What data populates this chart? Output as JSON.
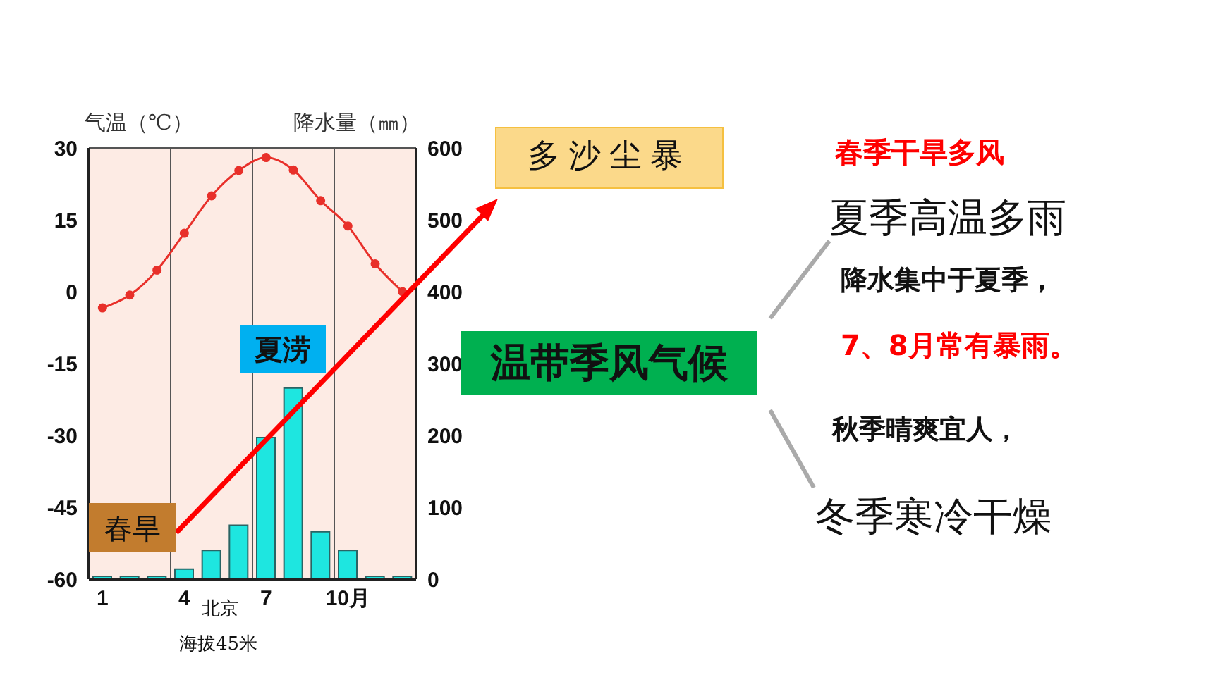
{
  "chart_data": {
    "type": "bar",
    "ylabel": "气温（℃）",
    "y2label": "降水量（㎜）",
    "categories": [
      "1",
      null,
      null,
      "4",
      null,
      null,
      "7",
      null,
      null,
      "10月",
      null,
      null
    ],
    "series": [
      {
        "axis": "y2",
        "color": "#1ee6e0",
        "values": [
          4,
          4,
          4,
          14,
          40,
          75,
          197,
          266,
          66,
          40,
          4,
          4
        ]
      },
      {
        "type": "line",
        "axis": "y",
        "color": "#e8302a",
        "marker": "circle",
        "values": [
          -3.4,
          -0.7,
          4.5,
          12.2,
          20,
          25.3,
          28,
          25.4,
          19,
          13.7,
          5.8,
          0
        ]
      }
    ],
    "ylim": [
      -60,
      30
    ],
    "yticks": [
      -60,
      -45,
      -30,
      -15,
      0,
      15,
      30
    ],
    "y2lim": [
      0,
      600
    ],
    "y2ticks": [
      0,
      100,
      200,
      300,
      400,
      500,
      600
    ],
    "grid": true,
    "legend": false,
    "annotations": [
      "北京",
      "海拔45米",
      "春旱",
      "夏涝",
      "多沙尘暴",
      "温带季风气候",
      "春季干旱多风",
      "夏季高温多雨",
      "降水集中于夏季，",
      "7、8月常有暴雨。",
      "秋季晴爽宜人，",
      "冬季寒冷干燥"
    ]
  }
}
